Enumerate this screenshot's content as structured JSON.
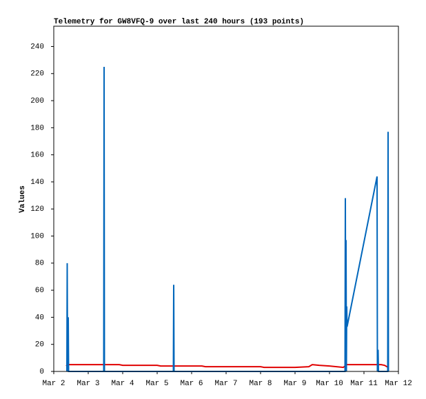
{
  "chart_data": {
    "type": "line",
    "title": "Telemetry for GW8VFQ-9 over last 240 hours (193 points)",
    "y_label": "Values",
    "xlim": [
      2,
      12
    ],
    "xticks": [
      {
        "value": 2,
        "label": "Mar 2"
      },
      {
        "value": 3,
        "label": "Mar 3"
      },
      {
        "value": 4,
        "label": "Mar 4"
      },
      {
        "value": 5,
        "label": "Mar 5"
      },
      {
        "value": 6,
        "label": "Mar 6"
      },
      {
        "value": 7,
        "label": "Mar 7"
      },
      {
        "value": 8,
        "label": "Mar 8"
      },
      {
        "value": 9,
        "label": "Mar 9"
      },
      {
        "value": 10,
        "label": "Mar 10"
      },
      {
        "value": 11,
        "label": "Mar 11"
      },
      {
        "value": 12,
        "label": "Mar 12"
      }
    ],
    "ylim": [
      0,
      255
    ],
    "yticks": [
      0,
      20,
      40,
      60,
      80,
      100,
      120,
      140,
      160,
      180,
      200,
      220,
      240
    ],
    "series": [
      {
        "color": "#e00000",
        "x": [
          2.36,
          2.4,
          3.9,
          4.0,
          5.0,
          5.1,
          6.3,
          6.4,
          8.0,
          8.1,
          9.0,
          9.4,
          9.5,
          9.7,
          10.0,
          10.4,
          10.5,
          11.5,
          11.6,
          11.7
        ],
        "values": [
          4,
          5,
          5,
          4.5,
          4.5,
          4,
          4,
          3.5,
          3.5,
          3,
          3,
          3.5,
          5,
          4.5,
          4,
          3,
          5,
          5,
          4.5,
          3
        ]
      },
      {
        "color": "#0066bb",
        "x": [
          2.38,
          2.39,
          2.4,
          2.42,
          2.43,
          3.45,
          3.46,
          3.47,
          5.47,
          5.48,
          5.49,
          10.45,
          10.46,
          10.47,
          10.48,
          10.49,
          10.5,
          10.51,
          11.38,
          11.39,
          11.41,
          11.42,
          11.69,
          11.7,
          11.71
        ],
        "values": [
          0,
          80,
          0,
          40,
          0,
          0,
          225,
          0,
          0,
          64,
          0,
          0,
          128,
          0,
          97,
          0,
          48,
          33,
          144,
          0,
          16,
          0,
          0,
          177,
          0
        ]
      }
    ]
  }
}
